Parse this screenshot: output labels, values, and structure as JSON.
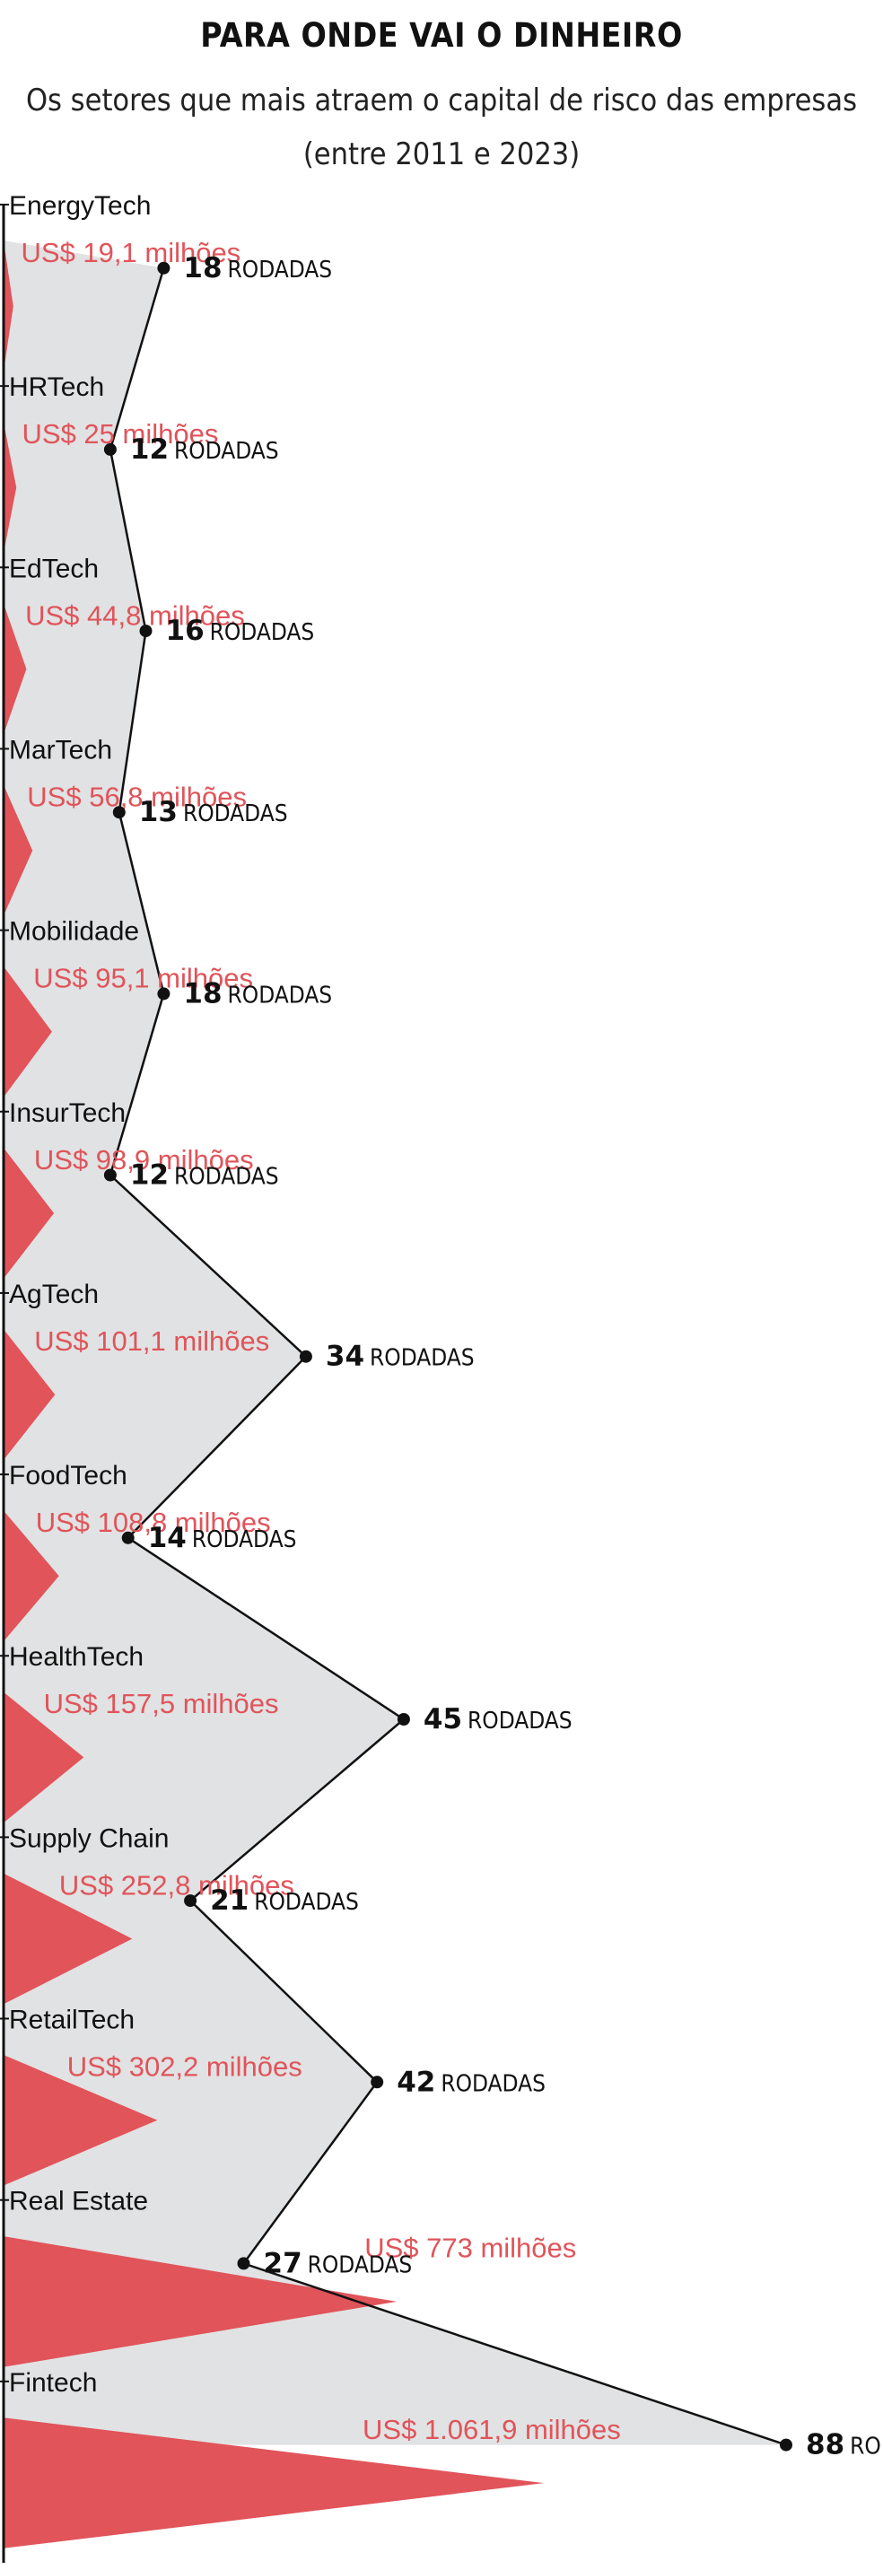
{
  "chart_data": {
    "type": "area",
    "title": "PARA ONDE VAI O DINHEIRO",
    "subtitle_line1": "Os setores que mais atraem o capital de risco das empresas",
    "subtitle_line2": "(entre 2011 e 2023)",
    "amount_prefix": "US$ ",
    "amount_suffix": " milhões",
    "rounds_unit": "RODADAS",
    "colors": {
      "amount": "#e0545a",
      "rounds_area": "#e1e2e3",
      "rounds_line": "#111111",
      "axis": "#111111"
    },
    "categories": [
      {
        "name": "EnergyTech",
        "amount": 19.1,
        "amount_label": "19,1",
        "rounds": 18
      },
      {
        "name": "HRTech",
        "amount": 25,
        "amount_label": "25",
        "rounds": 12
      },
      {
        "name": "EdTech",
        "amount": 44.8,
        "amount_label": "44,8",
        "rounds": 16
      },
      {
        "name": "MarTech",
        "amount": 56.8,
        "amount_label": "56,8",
        "rounds": 13
      },
      {
        "name": "Mobilidade",
        "amount": 95.1,
        "amount_label": "95,1",
        "rounds": 18
      },
      {
        "name": "InsurTech",
        "amount": 98.9,
        "amount_label": "98,9",
        "rounds": 12
      },
      {
        "name": "AgTech",
        "amount": 101.1,
        "amount_label": "101,1",
        "rounds": 34
      },
      {
        "name": "FoodTech",
        "amount": 108.8,
        "amount_label": "108,8",
        "rounds": 14
      },
      {
        "name": "HealthTech",
        "amount": 157.5,
        "amount_label": "157,5",
        "rounds": 45
      },
      {
        "name": "Supply Chain",
        "amount": 252.8,
        "amount_label": "252,8",
        "rounds": 21
      },
      {
        "name": "RetailTech",
        "amount": 302.2,
        "amount_label": "302,2",
        "rounds": 42
      },
      {
        "name": "Real Estate",
        "amount": 773,
        "amount_label": "773",
        "rounds": 27
      },
      {
        "name": "Fintech",
        "amount": 1061.9,
        "amount_label": "1.061,9",
        "rounds": 88
      }
    ]
  }
}
